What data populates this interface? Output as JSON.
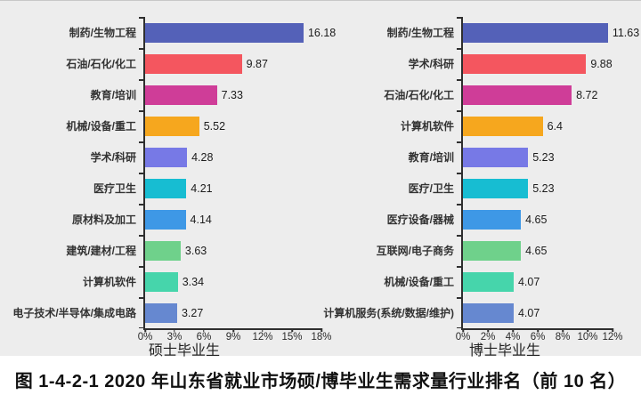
{
  "caption": "图 1-4-2-1 2020 年山东省就业市场硕/博毕业生需求量行业排名（前 10 名）",
  "colors": {
    "chart_background": "#ededed",
    "page_background": "#ffffff",
    "axis": "#2f2f2f",
    "bar_palette": [
      "#5461b8",
      "#f4565f",
      "#cf3d98",
      "#f6a71e",
      "#7779e6",
      "#17bdd2",
      "#3e98e6",
      "#6fd18b",
      "#46d5ab",
      "#6688d0"
    ]
  },
  "chart_data": [
    {
      "type": "bar",
      "orientation": "horizontal",
      "name": "masters-graduates",
      "xlabel": "硕士毕业生",
      "categories": [
        "制药/生物工程",
        "石油/石化/化工",
        "教育/培训",
        "机械/设备/重工",
        "学术/科研",
        "医疗卫生",
        "原材料及加工",
        "建筑/建材/工程",
        "计算机软件",
        "电子技术/半导体/集成电路"
      ],
      "values": [
        16.18,
        9.87,
        7.33,
        5.52,
        4.28,
        4.21,
        4.14,
        3.63,
        3.34,
        3.27
      ],
      "value_unit": "%",
      "xlim": [
        0,
        18
      ],
      "xtick_values": [
        0,
        3,
        6,
        9,
        12,
        15,
        18
      ],
      "xtick_labels": [
        "0%",
        "3%",
        "6%",
        "9%",
        "12%",
        "15%",
        "18%"
      ],
      "grid": false,
      "legend": false
    },
    {
      "type": "bar",
      "orientation": "horizontal",
      "name": "phd-graduates",
      "xlabel": "博士毕业生",
      "categories": [
        "制药/生物工程",
        "学术/科研",
        "石油/石化/化工",
        "计算机软件",
        "教育/培训",
        "医疗/卫生",
        "医疗设备/器械",
        "互联网/电子商务",
        "机械/设备/重工",
        "计算机服务(系统/数据/维护)"
      ],
      "values": [
        11.63,
        9.88,
        8.72,
        6.4,
        5.23,
        5.23,
        4.65,
        4.65,
        4.07,
        4.07
      ],
      "value_unit": "%",
      "xlim": [
        0,
        12
      ],
      "xtick_values": [
        0,
        2,
        4,
        6,
        8,
        10,
        12
      ],
      "xtick_labels": [
        "0%",
        "2%",
        "4%",
        "6%",
        "8%",
        "10%",
        "12%"
      ],
      "grid": false,
      "legend": false
    }
  ]
}
